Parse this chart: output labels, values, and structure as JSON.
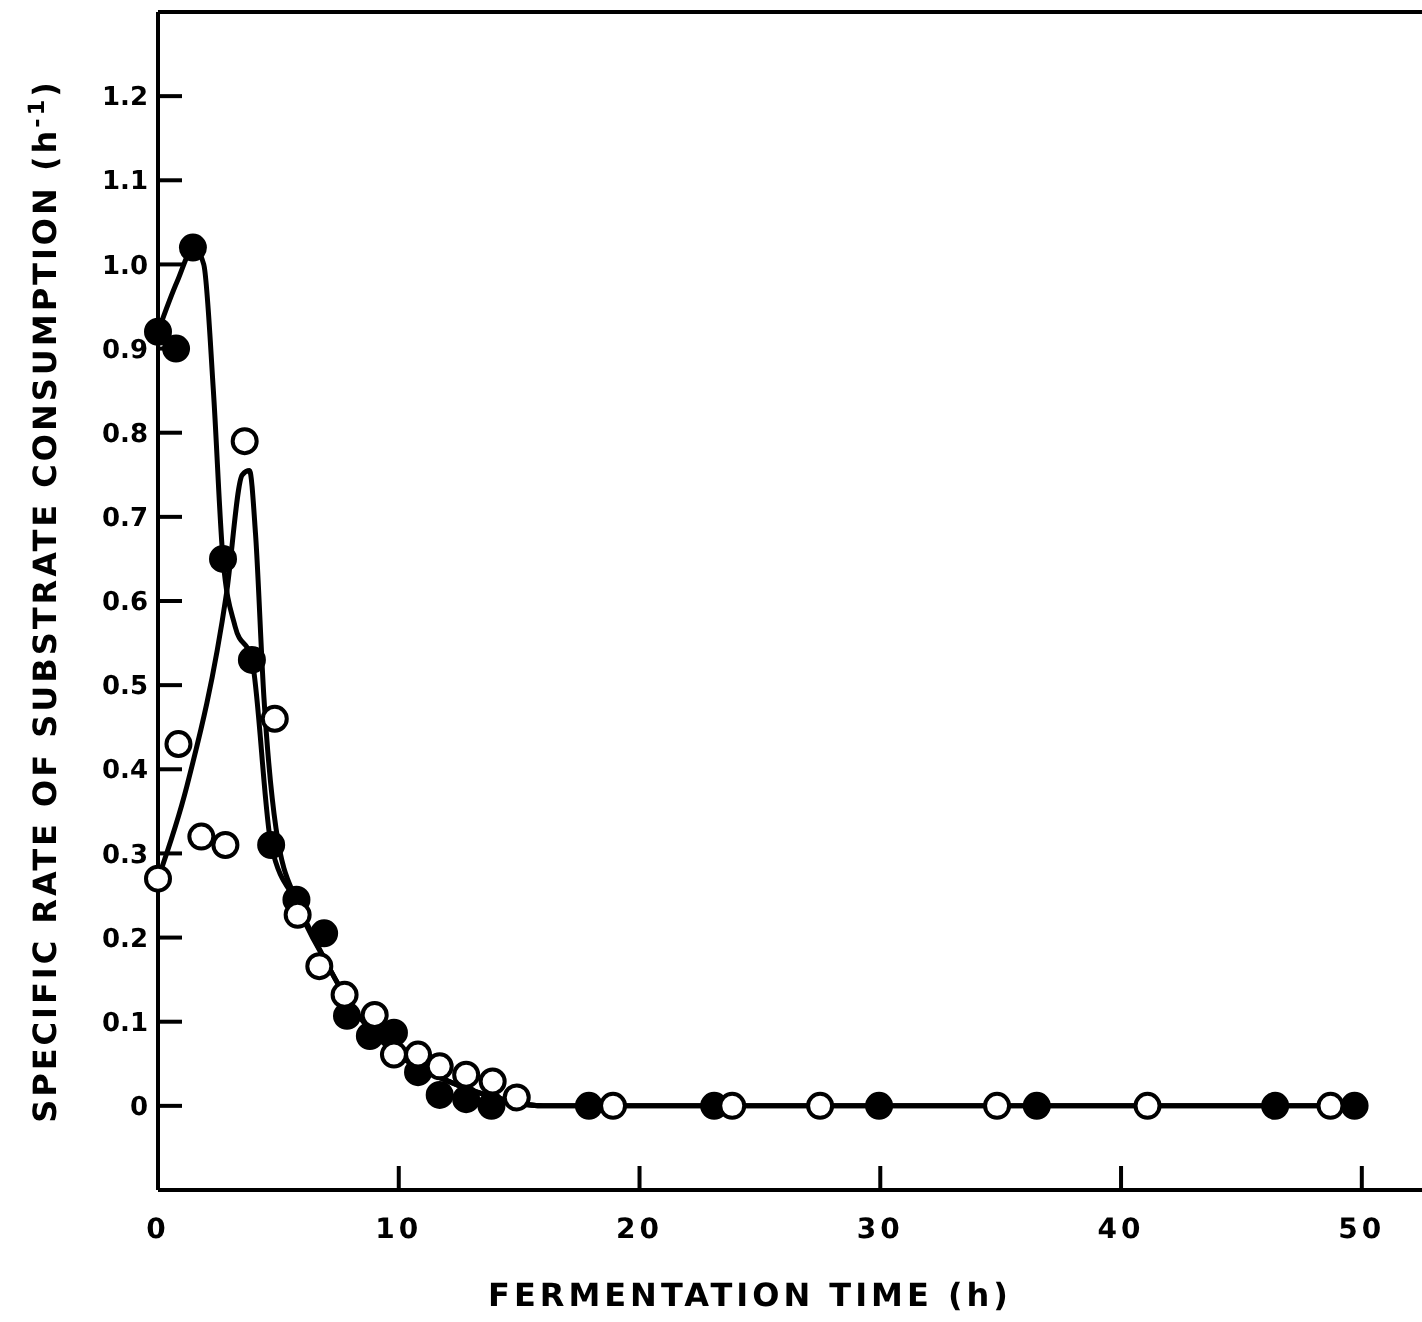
{
  "chart_data": {
    "type": "scatter",
    "xlabel": "FERMENTATION TIME (h)",
    "ylabel": "SPECIFIC RATE OF SUBSTRATE CONSUMPTION (h$^{-1}$)",
    "xlim": [
      0,
      52.5
    ],
    "ylim": [
      -0.1,
      1.3
    ],
    "xticks": [
      0,
      10,
      20,
      30,
      40,
      50
    ],
    "yticks": [
      0,
      0.1,
      0.2,
      0.3,
      0.4,
      0.5,
      0.6,
      0.7,
      0.8,
      0.9,
      {
        "value": 1,
        "label": "1.0"
      },
      1.1,
      1.2
    ],
    "grid": false,
    "marker": "circle",
    "series": [
      {
        "type": "line",
        "color": "#000000",
        "marker": "none",
        "line_style": "solid",
        "x": [
          0,
          0.8,
          1.5,
          1.9,
          2.3,
          2.7,
          3.2,
          3.9,
          4.7,
          5.8,
          7,
          8,
          9,
          10,
          12,
          14,
          16,
          18,
          25,
          35,
          50
        ],
        "values": [
          0.92,
          0.98,
          1.02,
          1.0,
          0.85,
          0.65,
          0.57,
          0.53,
          0.31,
          0.24,
          0.17,
          0.12,
          0.085,
          0.06,
          0.03,
          0.01,
          0,
          0,
          0,
          0,
          0
        ]
      },
      {
        "type": "line",
        "color": "#000000",
        "marker": "none",
        "line_style": "solid",
        "x": [
          0,
          1.2,
          2.85,
          3.5,
          3.8,
          4.05,
          4.4,
          4.9,
          5.8,
          7,
          8,
          9,
          10,
          12,
          14,
          16,
          18,
          25,
          35,
          50
        ],
        "values": [
          0.27,
          0.38,
          0.61,
          0.75,
          0.755,
          0.68,
          0.485,
          0.33,
          0.24,
          0.17,
          0.12,
          0.085,
          0.06,
          0.03,
          0.01,
          0,
          0,
          0,
          0,
          0
        ]
      },
      {
        "color": "#000000",
        "x": [
          0,
          0.75,
          1.45,
          2.7,
          3.9,
          4.7,
          5.75,
          6.9,
          7.85,
          8.8,
          9.8,
          10.8,
          11.7,
          12.8,
          13.85,
          17.9,
          23.1,
          29.95,
          36.5,
          46.4,
          49.7
        ],
        "values": [
          0.92,
          0.9,
          1.02,
          0.65,
          0.53,
          0.31,
          0.245,
          0.205,
          0.107,
          0.083,
          0.087,
          0.04,
          0.013,
          0.008,
          0,
          0,
          0,
          0,
          0,
          0,
          0
        ]
      },
      {
        "color": "#ffffff",
        "x": [
          0,
          0.85,
          1.8,
          2.8,
          3.6,
          4.85,
          5.8,
          6.7,
          7.75,
          9.0,
          9.8,
          10.8,
          11.7,
          12.8,
          13.9,
          14.9,
          18.9,
          23.85,
          27.5,
          34.85,
          41.1,
          48.7
        ],
        "values": [
          0.27,
          0.43,
          0.32,
          0.31,
          0.79,
          0.46,
          0.227,
          0.166,
          0.132,
          0.108,
          0.061,
          0.061,
          0.047,
          0.037,
          0.029,
          0.01,
          0,
          0,
          0,
          0,
          0,
          0
        ]
      }
    ]
  }
}
